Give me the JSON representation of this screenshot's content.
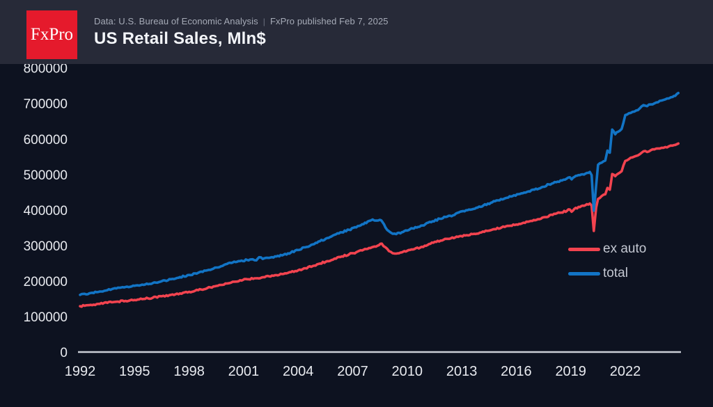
{
  "header": {
    "logo_text": "FxPro",
    "source_text": "Data: U.S. Bureau of Economic Analysis",
    "separator": "|",
    "published_text": "FxPro published Feb 7, 2025",
    "title": "US Retail Sales, Mln$"
  },
  "colors": {
    "page_bg": "#0d1220",
    "header_bg": "#272a38",
    "axis_line": "#cbced6",
    "tick_label": "#e8eaef",
    "legend_label": "#c3c7d1",
    "logo_bg": "#e51a2c",
    "ex_auto": "#f2434f",
    "total": "#1274c5"
  },
  "chart_data": {
    "type": "line",
    "title": "US Retail Sales, Mln$",
    "xlabel": "",
    "ylabel": "",
    "xlim": [
      1992,
      2025
    ],
    "ylim": [
      0,
      800000
    ],
    "grid": false,
    "legend_position": "right-middle",
    "x_ticks": [
      1992,
      1995,
      1998,
      2001,
      2004,
      2007,
      2010,
      2013,
      2016,
      2019,
      2022
    ],
    "y_ticks": [
      0,
      100000,
      200000,
      300000,
      400000,
      500000,
      600000,
      700000,
      800000
    ],
    "legend": [
      {
        "label": "ex auto",
        "color": "#f2434f"
      },
      {
        "label": "total",
        "color": "#1274c5"
      }
    ],
    "series": [
      {
        "name": "ex auto",
        "color": "#f2434f",
        "points": [
          [
            1992.0,
            130000
          ],
          [
            1992.5,
            133000
          ],
          [
            1993.0,
            136500
          ],
          [
            1993.5,
            139500
          ],
          [
            1994.0,
            142500
          ],
          [
            1994.5,
            145000
          ],
          [
            1995.0,
            147500
          ],
          [
            1995.5,
            150500
          ],
          [
            1996.0,
            154000
          ],
          [
            1996.5,
            158000
          ],
          [
            1997.0,
            162000
          ],
          [
            1997.5,
            166000
          ],
          [
            1998.0,
            170500
          ],
          [
            1998.5,
            175000
          ],
          [
            1999.0,
            181000
          ],
          [
            1999.5,
            187000
          ],
          [
            2000.0,
            194000
          ],
          [
            2000.4,
            199000
          ],
          [
            2000.8,
            203000
          ],
          [
            2001.2,
            206000
          ],
          [
            2001.6,
            208500
          ],
          [
            2002.0,
            211000
          ],
          [
            2002.4,
            214000
          ],
          [
            2002.8,
            217500
          ],
          [
            2003.2,
            221000
          ],
          [
            2003.6,
            226000
          ],
          [
            2004.0,
            231000
          ],
          [
            2004.4,
            237000
          ],
          [
            2004.8,
            243000
          ],
          [
            2005.2,
            250000
          ],
          [
            2005.6,
            257000
          ],
          [
            2006.0,
            264000
          ],
          [
            2006.4,
            270000
          ],
          [
            2006.8,
            276000
          ],
          [
            2007.2,
            282000
          ],
          [
            2007.6,
            289000
          ],
          [
            2007.9,
            294000
          ],
          [
            2008.2,
            298000
          ],
          [
            2008.45,
            302000
          ],
          [
            2008.6,
            306000
          ],
          [
            2008.8,
            296000
          ],
          [
            2009.0,
            285000
          ],
          [
            2009.2,
            279000
          ],
          [
            2009.4,
            278000
          ],
          [
            2009.7,
            281500
          ],
          [
            2010.0,
            286000
          ],
          [
            2010.4,
            291000
          ],
          [
            2010.8,
            297000
          ],
          [
            2011.2,
            305000
          ],
          [
            2011.6,
            311000
          ],
          [
            2012.0,
            317000
          ],
          [
            2012.4,
            321000
          ],
          [
            2012.8,
            325000
          ],
          [
            2013.2,
            329000
          ],
          [
            2013.6,
            333000
          ],
          [
            2014.0,
            337000
          ],
          [
            2014.4,
            342000
          ],
          [
            2014.8,
            347000
          ],
          [
            2015.2,
            352000
          ],
          [
            2015.6,
            356000
          ],
          [
            2016.0,
            360000
          ],
          [
            2016.4,
            365000
          ],
          [
            2016.8,
            370000
          ],
          [
            2017.2,
            375000
          ],
          [
            2017.6,
            381000
          ],
          [
            2018.0,
            387000
          ],
          [
            2018.4,
            393000
          ],
          [
            2018.8,
            399000
          ],
          [
            2018.95,
            402000
          ],
          [
            2019.05,
            396000
          ],
          [
            2019.2,
            404000
          ],
          [
            2019.5,
            409000
          ],
          [
            2019.8,
            414000
          ],
          [
            2020.05,
            419000
          ],
          [
            2020.15,
            413000
          ],
          [
            2020.27,
            342000
          ],
          [
            2020.4,
            408000
          ],
          [
            2020.5,
            432000
          ],
          [
            2020.7,
            440000
          ],
          [
            2020.9,
            445000
          ],
          [
            2021.02,
            463000
          ],
          [
            2021.15,
            458000
          ],
          [
            2021.28,
            502000
          ],
          [
            2021.45,
            496000
          ],
          [
            2021.6,
            503000
          ],
          [
            2021.8,
            510000
          ],
          [
            2022.0,
            539000
          ],
          [
            2022.2,
            544000
          ],
          [
            2022.4,
            549000
          ],
          [
            2022.6,
            553000
          ],
          [
            2022.8,
            558000
          ],
          [
            2023.0,
            566000
          ],
          [
            2023.2,
            564000
          ],
          [
            2023.4,
            569000
          ],
          [
            2023.6,
            571500
          ],
          [
            2023.8,
            574000
          ],
          [
            2024.0,
            576000
          ],
          [
            2024.2,
            578000
          ],
          [
            2024.4,
            580000
          ],
          [
            2024.6,
            582000
          ],
          [
            2024.75,
            584000
          ],
          [
            2024.92,
            588000
          ]
        ]
      },
      {
        "name": "total",
        "color": "#1274c5",
        "points": [
          [
            1992.0,
            162000
          ],
          [
            1992.5,
            166000
          ],
          [
            1993.0,
            170000
          ],
          [
            1993.5,
            175000
          ],
          [
            1994.0,
            180000
          ],
          [
            1994.5,
            184000
          ],
          [
            1995.0,
            187500
          ],
          [
            1995.5,
            190000
          ],
          [
            1996.0,
            195000
          ],
          [
            1996.5,
            200500
          ],
          [
            1997.0,
            206000
          ],
          [
            1997.5,
            212000
          ],
          [
            1998.0,
            218000
          ],
          [
            1998.5,
            224000
          ],
          [
            1999.0,
            231000
          ],
          [
            1999.5,
            239000
          ],
          [
            2000.0,
            248000
          ],
          [
            2000.4,
            253000
          ],
          [
            2000.8,
            257000
          ],
          [
            2001.2,
            260000
          ],
          [
            2001.5,
            262000
          ],
          [
            2001.7,
            259000
          ],
          [
            2001.85,
            268000
          ],
          [
            2002.05,
            263000
          ],
          [
            2002.4,
            266000
          ],
          [
            2002.8,
            270000
          ],
          [
            2003.2,
            275000
          ],
          [
            2003.6,
            281000
          ],
          [
            2004.0,
            288000
          ],
          [
            2004.4,
            296000
          ],
          [
            2004.8,
            304000
          ],
          [
            2005.2,
            313000
          ],
          [
            2005.6,
            322000
          ],
          [
            2006.0,
            331000
          ],
          [
            2006.4,
            338000
          ],
          [
            2006.8,
            345000
          ],
          [
            2007.2,
            352000
          ],
          [
            2007.6,
            361000
          ],
          [
            2007.9,
            370000
          ],
          [
            2008.1,
            374000
          ],
          [
            2008.3,
            371000
          ],
          [
            2008.5,
            373000
          ],
          [
            2008.65,
            366000
          ],
          [
            2008.8,
            352000
          ],
          [
            2009.0,
            341000
          ],
          [
            2009.2,
            334000
          ],
          [
            2009.4,
            333000
          ],
          [
            2009.7,
            338000
          ],
          [
            2010.0,
            343000
          ],
          [
            2010.3,
            349000
          ],
          [
            2010.6,
            353000
          ],
          [
            2011.0,
            361000
          ],
          [
            2011.4,
            369000
          ],
          [
            2011.8,
            376000
          ],
          [
            2012.2,
            382000
          ],
          [
            2012.6,
            387000
          ],
          [
            2013.0,
            397000
          ],
          [
            2013.4,
            402000
          ],
          [
            2013.8,
            407000
          ],
          [
            2014.2,
            414000
          ],
          [
            2014.6,
            421000
          ],
          [
            2015.0,
            428000
          ],
          [
            2015.4,
            434000
          ],
          [
            2015.8,
            440000
          ],
          [
            2016.2,
            446000
          ],
          [
            2016.6,
            452000
          ],
          [
            2017.0,
            458000
          ],
          [
            2017.4,
            465000
          ],
          [
            2017.8,
            473000
          ],
          [
            2018.2,
            479000
          ],
          [
            2018.6,
            486000
          ],
          [
            2018.95,
            493000
          ],
          [
            2019.05,
            487000
          ],
          [
            2019.2,
            494000
          ],
          [
            2019.5,
            499000
          ],
          [
            2019.8,
            503000
          ],
          [
            2020.05,
            508000
          ],
          [
            2020.15,
            499000
          ],
          [
            2020.27,
            399000
          ],
          [
            2020.4,
            470000
          ],
          [
            2020.5,
            528000
          ],
          [
            2020.7,
            534000
          ],
          [
            2020.9,
            540000
          ],
          [
            2021.02,
            568000
          ],
          [
            2021.15,
            562000
          ],
          [
            2021.28,
            627000
          ],
          [
            2021.45,
            614000
          ],
          [
            2021.6,
            621000
          ],
          [
            2021.8,
            629000
          ],
          [
            2022.0,
            668000
          ],
          [
            2022.2,
            673000
          ],
          [
            2022.4,
            677000
          ],
          [
            2022.6,
            681000
          ],
          [
            2022.8,
            687000
          ],
          [
            2023.0,
            696000
          ],
          [
            2023.2,
            693000
          ],
          [
            2023.4,
            698000
          ],
          [
            2023.6,
            701000
          ],
          [
            2023.8,
            704000
          ],
          [
            2024.0,
            709000
          ],
          [
            2024.2,
            712000
          ],
          [
            2024.4,
            715000
          ],
          [
            2024.6,
            719000
          ],
          [
            2024.75,
            722000
          ],
          [
            2024.92,
            730000
          ]
        ]
      }
    ]
  }
}
